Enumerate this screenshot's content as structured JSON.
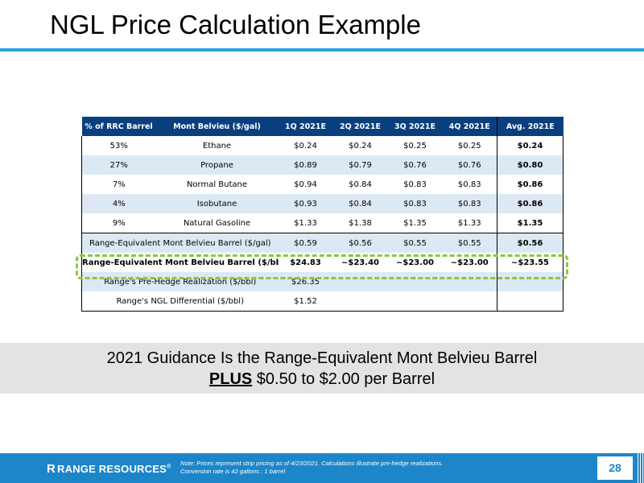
{
  "title": "NGL Price Calculation Example",
  "table": {
    "headers": [
      "% of RRC Barrel",
      "Mont Belvieu ($/gal)",
      "1Q 2021E",
      "2Q 2021E",
      "3Q 2021E",
      "4Q 2021E",
      "Avg. 2021E"
    ],
    "rows": [
      {
        "pct": "53%",
        "name": "Ethane",
        "q1": "$0.24",
        "q2": "$0.24",
        "q3": "$0.25",
        "q4": "$0.25",
        "avg": "$0.24"
      },
      {
        "pct": "27%",
        "name": "Propane",
        "q1": "$0.89",
        "q2": "$0.79",
        "q3": "$0.76",
        "q4": "$0.76",
        "avg": "$0.80"
      },
      {
        "pct": "7%",
        "name": "Normal Butane",
        "q1": "$0.94",
        "q2": "$0.84",
        "q3": "$0.83",
        "q4": "$0.83",
        "avg": "$0.86"
      },
      {
        "pct": "4%",
        "name": "Isobutane",
        "q1": "$0.93",
        "q2": "$0.84",
        "q3": "$0.83",
        "q4": "$0.83",
        "avg": "$0.86"
      },
      {
        "pct": "9%",
        "name": "Natural Gasoline",
        "q1": "$1.33",
        "q2": "$1.38",
        "q3": "$1.35",
        "q4": "$1.33",
        "avg": "$1.35"
      }
    ],
    "summary": [
      {
        "label": "Range-Equivalent Mont Belvieu Barrel ($/gal)",
        "q1": "$0.59",
        "q2": "$0.56",
        "q3": "$0.55",
        "q4": "$0.55",
        "avg": "$0.56"
      },
      {
        "label": "Range-Equivalent Mont Belvieu Barrel ($/bbl)",
        "q1": "$24.83",
        "q2": "~$23.40",
        "q3": "~$23.00",
        "q4": "~$23.00",
        "avg": "~$23.55"
      },
      {
        "label": "Range's Pre-Hedge Realization ($/bbl)",
        "q1": "$26.35",
        "q2": "",
        "q3": "",
        "q4": "",
        "avg": ""
      },
      {
        "label": "Range's NGL Differential ($/bbl)",
        "q1": "$1.52",
        "q2": "",
        "q3": "",
        "q4": "",
        "avg": ""
      }
    ]
  },
  "banner": {
    "line1": "2021 Guidance Is the Range-Equivalent Mont Belvieu Barrel",
    "plus": "PLUS",
    "line2_rest": " $0.50 to $2.00 per Barrel"
  },
  "footer": {
    "logo_icon": "R",
    "logo_text": "RANGE RESOURCES",
    "logo_mark": "®",
    "note_line1": "Note: Prices represent strip pricing as of 4/23/2021. Calculations illustrate pre-hedge realizations.",
    "note_line2": "Conversion rate is 42 gallons : 1 barrel",
    "page_number": "28"
  },
  "colors": {
    "title_rule": "#2aa0dc",
    "header_bg": "#0a3f7f",
    "row_alt": "#dce9f5",
    "highlight_dash": "#8dc63f",
    "footer_bg": "#1d86c9",
    "banner_bg": "#e3e3e3"
  }
}
